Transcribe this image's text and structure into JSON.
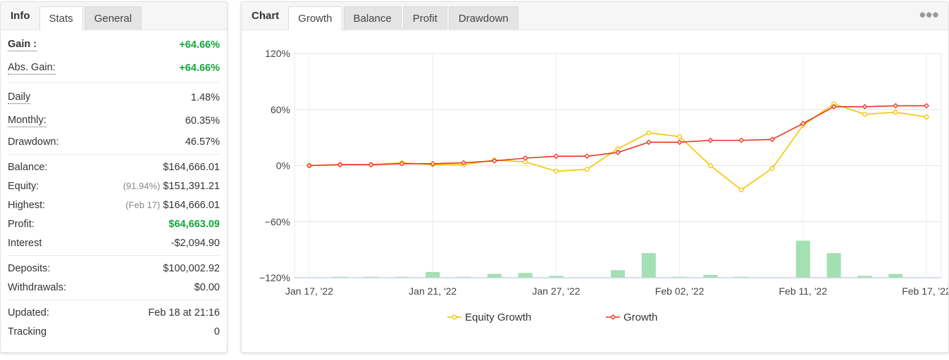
{
  "left_panel": {
    "tabs": [
      {
        "label": "Info",
        "active": false
      },
      {
        "label": "Stats",
        "active": true
      },
      {
        "label": "General",
        "active": false
      }
    ],
    "stats": {
      "gain": {
        "label": "Gain :",
        "value": "+64.66%"
      },
      "abs_gain": {
        "label": "Abs. Gain:",
        "value": "+64.66%"
      },
      "daily": {
        "label": "Daily",
        "value": "1.48%"
      },
      "monthly": {
        "label": "Monthly:",
        "value": "60.35%"
      },
      "drawdown": {
        "label": "Drawdown:",
        "value": "46.57%"
      },
      "balance": {
        "label": "Balance:",
        "value": "$164,666.01"
      },
      "equity": {
        "label": "Equity:",
        "note": "(91.94%)",
        "value": "$151,391.21"
      },
      "highest": {
        "label": "Highest:",
        "note": "(Feb 17)",
        "value": "$164,666.01"
      },
      "profit": {
        "label": "Profit:",
        "value": "$64,663.09"
      },
      "interest": {
        "label": "Interest",
        "value": "-$2,094.90"
      },
      "deposits": {
        "label": "Deposits:",
        "value": "$100,002.92"
      },
      "withdrawals": {
        "label": "Withdrawals:",
        "value": "$0.00"
      },
      "updated": {
        "label": "Updated:",
        "value": "Feb 18 at 21:16"
      },
      "tracking": {
        "label": "Tracking",
        "value": "0"
      }
    }
  },
  "right_panel": {
    "header": "Chart",
    "tabs": [
      {
        "label": "Growth",
        "active": true
      },
      {
        "label": "Balance",
        "active": false
      },
      {
        "label": "Profit",
        "active": false
      },
      {
        "label": "Drawdown",
        "active": false
      }
    ],
    "more_icon": "ellipsis-icon"
  },
  "colors": {
    "equity": "#f5c400",
    "growth": "#ee3322",
    "bars": "#a3e0b3",
    "gain_green": "#12a83a"
  },
  "chart_data": {
    "type": "line",
    "title": "",
    "xlabel": "",
    "ylabel": "",
    "ylim": [
      -120,
      120
    ],
    "yticks": [
      "120%",
      "60%",
      "0%",
      "−60%",
      "−120%"
    ],
    "ytick_values": [
      120,
      60,
      0,
      -60,
      -120
    ],
    "xticks": [
      "Jan 17, '22",
      "Jan 21, '22",
      "Jan 27, '22",
      "Feb 02, '22",
      "Feb 11, '22",
      "Feb 17, '22"
    ],
    "n_points": 21,
    "xtick_indices": [
      0,
      4,
      8,
      12,
      16,
      20
    ],
    "grid": true,
    "legend": "bottom",
    "series": [
      {
        "name": "Equity Growth",
        "values": [
          0,
          1,
          1,
          3,
          1,
          1,
          6,
          4,
          -6,
          -4,
          18,
          35,
          31,
          0,
          -26,
          -3,
          43,
          66,
          55,
          57,
          52
        ]
      },
      {
        "name": "Growth",
        "values": [
          0,
          1,
          1,
          2,
          2,
          3,
          5,
          8,
          10,
          10,
          14,
          25,
          25,
          27,
          27,
          28,
          45,
          63,
          63,
          64,
          64
        ]
      }
    ],
    "bars": {
      "values": [
        0,
        1,
        1,
        1,
        6,
        1,
        4,
        5,
        2,
        0,
        8,
        26,
        1,
        3,
        1,
        0,
        39,
        26,
        2,
        4,
        0
      ]
    }
  }
}
